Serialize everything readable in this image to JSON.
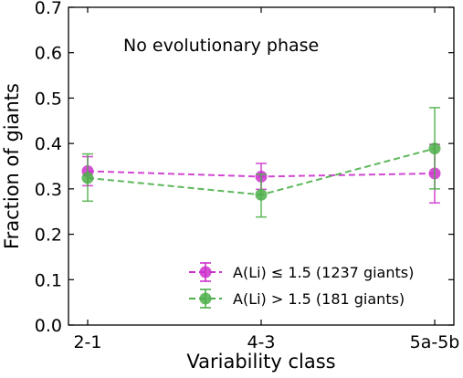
{
  "chart_data": {
    "type": "line",
    "annotation": "No evolutionary phase",
    "xlabel": "Variability class",
    "ylabel": "Fraction of giants",
    "categories": [
      "2-1",
      "4-3",
      "5a-5b"
    ],
    "ylim": [
      0.0,
      0.7
    ],
    "yticks": [
      "0.0",
      "0.1",
      "0.2",
      "0.3",
      "0.4",
      "0.5",
      "0.6",
      "0.7"
    ],
    "grid": false,
    "legend_position": "bottom-right",
    "series": [
      {
        "name": "A(Li) ≤ 1.5 (1237 giants)",
        "color": "#cc33cc",
        "values": [
          0.339,
          0.327,
          0.334
        ],
        "err_low": [
          0.307,
          0.299,
          0.269
        ],
        "err_high": [
          0.371,
          0.356,
          0.398
        ]
      },
      {
        "name": "A(Li) > 1.5 (181 giants)",
        "color": "#4daf4a",
        "values": [
          0.324,
          0.287,
          0.389
        ],
        "err_low": [
          0.273,
          0.238,
          0.3
        ],
        "err_high": [
          0.377,
          0.332,
          0.479
        ]
      }
    ]
  }
}
